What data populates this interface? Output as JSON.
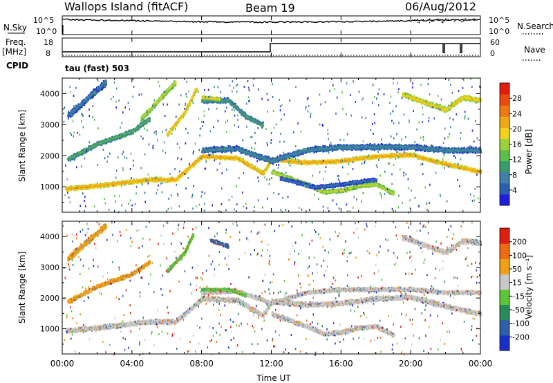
{
  "header": {
    "station": "Wallops Island (fitACF)",
    "beam": "Beam 19",
    "date": "06/Aug/2012"
  },
  "panels": {
    "nsky_label": "N.Sky",
    "nsky_ticks": [
      "10^5",
      "10^0"
    ],
    "nsearch_label": "N.Search",
    "nsearch_ticks": [
      "10^5",
      "10^0"
    ],
    "freq_label": "Freq.",
    "freq_unit": "[MHz]",
    "freq_ticks": [
      "18",
      "8"
    ],
    "nave_label": "Nave",
    "nave_ticks": [
      "60",
      "0"
    ],
    "cpid_label": "CPID",
    "cpid_value": "tau (fast) 503"
  },
  "chart_data": [
    {
      "type": "heatmap",
      "title": "",
      "ylabel": "Slant Range [km]",
      "xlabel": "",
      "ylim": [
        180,
        4500
      ],
      "xlim": [
        0,
        24
      ],
      "yticks": [
        1000,
        2000,
        3000,
        4000
      ],
      "colorbar": {
        "label": "Power [dB]",
        "ticks": [
          "28",
          "24",
          "20",
          "16",
          "12",
          "8",
          "4"
        ],
        "colors": [
          "#1e1edc",
          "#2a5fb0",
          "#3f7fa8",
          "#3c9a6a",
          "#5cbf4a",
          "#9ad23c",
          "#f2d21a",
          "#f0a818",
          "#ef7a12",
          "#e84a10",
          "#e01e10"
        ]
      },
      "bands": [
        {
          "points": [
            [
              0.2,
              950
            ],
            [
              2,
              1050
            ],
            [
              3.5,
              1150
            ],
            [
              5,
              1250
            ],
            [
              6.5,
              1250
            ],
            [
              8,
              2000
            ],
            [
              10,
              1950
            ],
            [
              11.5,
              1450
            ],
            [
              12,
              1900
            ],
            [
              14,
              1800
            ],
            [
              16,
              1850
            ],
            [
              18,
              2000
            ],
            [
              20,
              2050
            ],
            [
              22,
              1750
            ],
            [
              24,
              1500
            ]
          ],
          "level": 22,
          "width": 90
        },
        {
          "points": [
            [
              8,
              2200
            ],
            [
              10,
              2250
            ],
            [
              12,
              1850
            ],
            [
              14,
              2200
            ],
            [
              16,
              2300
            ],
            [
              18,
              2300
            ],
            [
              20,
              2300
            ],
            [
              22,
              2200
            ],
            [
              24,
              2200
            ]
          ],
          "level": 10,
          "width": 120
        },
        {
          "points": [
            [
              12,
              1500
            ],
            [
              14,
              1100
            ],
            [
              15,
              850
            ],
            [
              16,
              900
            ],
            [
              17,
              1050
            ],
            [
              18,
              1100
            ],
            [
              19,
              800
            ]
          ],
          "level": 18,
          "width": 90
        },
        {
          "points": [
            [
              12.5,
              1300
            ],
            [
              14.5,
              1000
            ],
            [
              16,
              1100
            ],
            [
              18,
              1250
            ]
          ],
          "level": 8,
          "width": 80
        },
        {
          "points": [
            [
              4.5,
              3200
            ],
            [
              5.5,
              3800
            ],
            [
              6.5,
              4400
            ]
          ],
          "level": 18,
          "width": 110
        },
        {
          "points": [
            [
              6,
              2700
            ],
            [
              7,
              3400
            ],
            [
              7.7,
              4200
            ]
          ],
          "level": 21,
          "width": 90
        },
        {
          "points": [
            [
              8,
              3800
            ],
            [
              9.5,
              3800
            ],
            [
              10.5,
              3300
            ],
            [
              11.5,
              3000
            ]
          ],
          "level": 12,
          "width": 110
        },
        {
          "points": [
            [
              8,
              3900
            ],
            [
              9,
              3850
            ]
          ],
          "level": 20,
          "width": 60
        },
        {
          "points": [
            [
              19.5,
              4000
            ],
            [
              21,
              3700
            ],
            [
              22,
              3500
            ],
            [
              23,
              3900
            ],
            [
              24,
              3800
            ]
          ],
          "level": 20,
          "width": 110
        },
        {
          "points": [
            [
              0.3,
              1900
            ],
            [
              2,
              2400
            ],
            [
              4,
              2800
            ],
            [
              5,
              3200
            ]
          ],
          "level": 13,
          "width": 100
        },
        {
          "points": [
            [
              0.3,
              3300
            ],
            [
              1.5,
              3900
            ],
            [
              2.5,
              4400
            ]
          ],
          "level": 9,
          "width": 150
        }
      ]
    },
    {
      "type": "heatmap",
      "title": "",
      "ylabel": "Slant Range [km]",
      "xlabel": "Time UT",
      "ylim": [
        180,
        4500
      ],
      "xlim": [
        0,
        24
      ],
      "yticks": [
        1000,
        2000,
        3000,
        4000
      ],
      "xtick_labels": [
        "00:00",
        "04:00",
        "08:00",
        "12:00",
        "16:00",
        "20:00",
        "00:00"
      ],
      "colorbar": {
        "label": "Velocity [m s⁻¹]",
        "ticks": [
          "200",
          "100",
          "50",
          "15",
          "-15",
          "-50",
          "-100",
          "-200"
        ],
        "colors": [
          "#1a2fc8",
          "#2f5fa8",
          "#2a8a5a",
          "#5ec43a",
          "#c8c8c8",
          "#f0a018",
          "#ef6a12",
          "#e01e10"
        ]
      },
      "bands": [
        {
          "points": [
            [
              0.2,
              950
            ],
            [
              2,
              1050
            ],
            [
              3.5,
              1150
            ],
            [
              5,
              1250
            ],
            [
              6.5,
              1250
            ],
            [
              8,
              2000
            ],
            [
              10,
              1950
            ],
            [
              11.5,
              1450
            ],
            [
              12,
              1900
            ],
            [
              14,
              1800
            ],
            [
              16,
              1850
            ],
            [
              18,
              2000
            ],
            [
              20,
              2050
            ],
            [
              22,
              1750
            ],
            [
              24,
              1500
            ]
          ],
          "color": "#c8c8c8",
          "width": 110
        },
        {
          "points": [
            [
              8,
              2200
            ],
            [
              10,
              2250
            ],
            [
              12,
              1850
            ],
            [
              14,
              2200
            ],
            [
              16,
              2300
            ],
            [
              18,
              2300
            ],
            [
              20,
              2300
            ],
            [
              22,
              2200
            ],
            [
              24,
              2200
            ]
          ],
          "color": "#c8c8c8",
          "width": 90
        },
        {
          "points": [
            [
              12,
              1500
            ],
            [
              14,
              1100
            ],
            [
              15,
              850
            ],
            [
              16,
              900
            ],
            [
              17,
              1050
            ],
            [
              18,
              1100
            ],
            [
              19,
              800
            ]
          ],
          "color": "#c8c8c8",
          "width": 100
        },
        {
          "points": [
            [
              6,
              2900
            ],
            [
              7,
              3500
            ],
            [
              7.5,
              4100
            ]
          ],
          "color": "#5ec43a",
          "width": 90
        },
        {
          "points": [
            [
              8,
              2300
            ],
            [
              9.5,
              2300
            ],
            [
              10.5,
              2100
            ]
          ],
          "color": "#5ec43a",
          "width": 60
        },
        {
          "points": [
            [
              8.5,
              3900
            ],
            [
              9.5,
              3700
            ]
          ],
          "color": "#2f5fa8",
          "width": 80
        },
        {
          "points": [
            [
              19.5,
              4000
            ],
            [
              21,
              3700
            ],
            [
              22,
              3500
            ],
            [
              23,
              3900
            ],
            [
              24,
              3800
            ]
          ],
          "color": "#c8c8c8",
          "width": 110
        },
        {
          "points": [
            [
              0.3,
              1900
            ],
            [
              2,
              2400
            ],
            [
              4,
              2800
            ],
            [
              5,
              3200
            ]
          ],
          "color": "#f0a018",
          "width": 90
        },
        {
          "points": [
            [
              0.3,
              3300
            ],
            [
              1.5,
              3900
            ],
            [
              2.5,
              4400
            ]
          ],
          "color": "#f0a018",
          "width": 130
        }
      ]
    }
  ]
}
